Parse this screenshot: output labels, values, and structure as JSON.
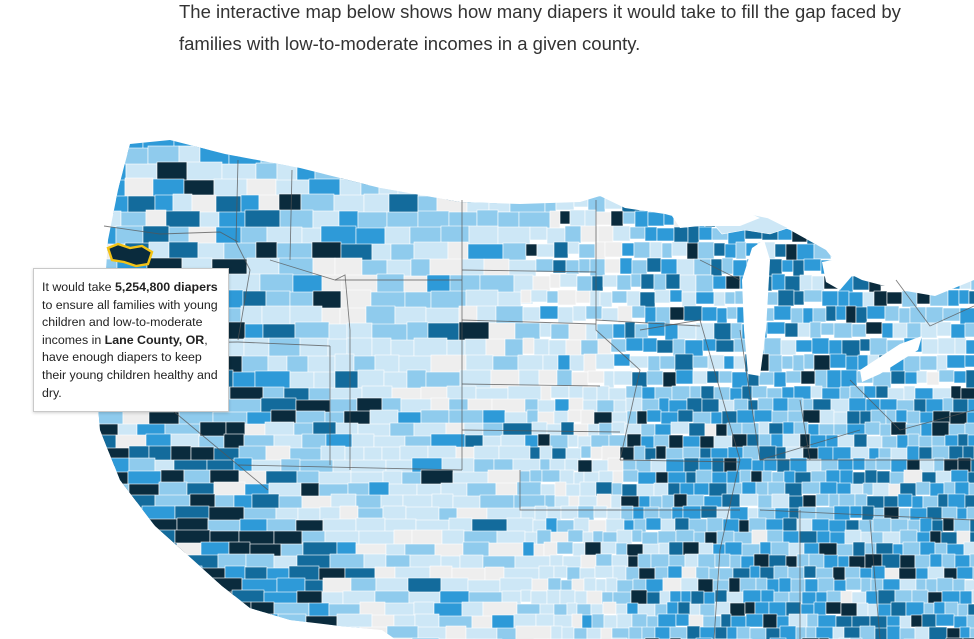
{
  "intro": {
    "line1": "The interactive map below shows how many diapers it would take to fill the gap faced by",
    "line2": "families with low-to-moderate incomes in a given county."
  },
  "tooltip": {
    "prefix": "It would take ",
    "amount": "5,254,800",
    "unit": "diapers",
    "middle": " to ensure all families with young children and low-to-moderate incomes in ",
    "county": "Lane County, OR",
    "suffix": ", have enough diapers to keep their young children healthy and dry."
  },
  "map": {
    "highlighted_county": "Lane County, OR",
    "color_scale": [
      "#eeeeee",
      "#cde7f6",
      "#8fcbed",
      "#2e9ad8",
      "#136b9c",
      "#0a2b3d"
    ],
    "highlight_color": "#f3c316",
    "state_border_color": "#555555"
  }
}
